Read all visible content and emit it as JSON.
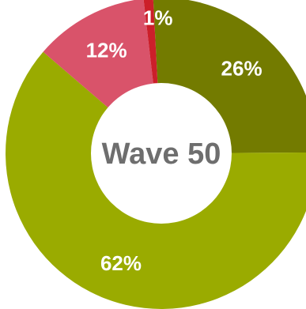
{
  "chart_data": {
    "type": "pie",
    "center_label": "Wave 50",
    "slices": [
      {
        "label": "26%",
        "value": 26,
        "color": "#737b00"
      },
      {
        "label": "62%",
        "value": 62,
        "color": "#9aab00"
      },
      {
        "label": "12%",
        "value": 12,
        "color": "#d9536a"
      },
      {
        "label": "1%",
        "value": 1,
        "color": "#cc1f2a"
      }
    ]
  }
}
